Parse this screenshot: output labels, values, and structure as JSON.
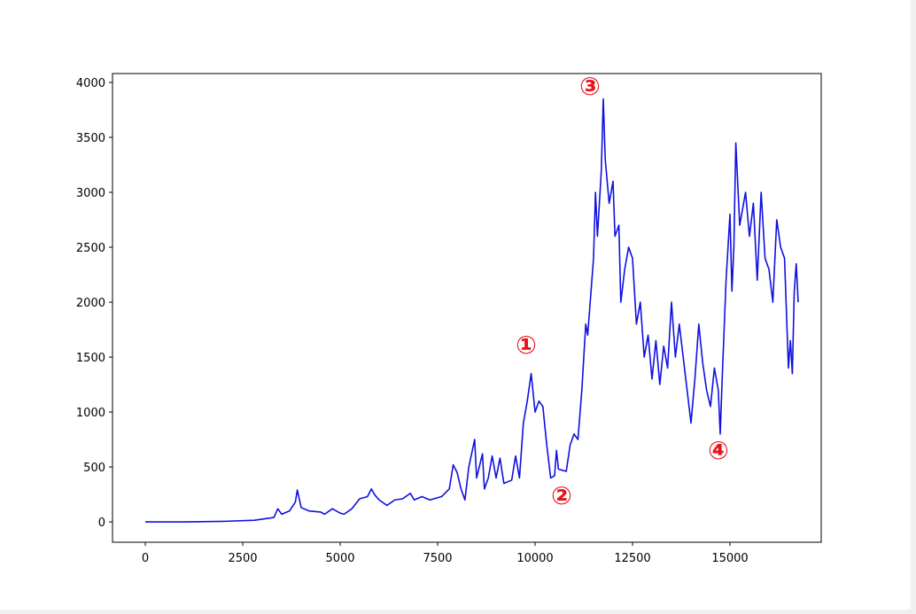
{
  "chart_data": {
    "type": "line",
    "color": "#1010e0",
    "x": [
      0,
      1000,
      2000,
      2800,
      3000,
      3300,
      3400,
      3500,
      3700,
      3850,
      3900,
      4000,
      4200,
      4500,
      4600,
      4800,
      5000,
      5100,
      5300,
      5500,
      5700,
      5800,
      5900,
      6000,
      6200,
      6400,
      6600,
      6800,
      6900,
      7100,
      7300,
      7600,
      7800,
      7900,
      8000,
      8100,
      8200,
      8300,
      8450,
      8500,
      8650,
      8700,
      8800,
      8900,
      9000,
      9100,
      9200,
      9400,
      9500,
      9600,
      9700,
      9800,
      9900,
      10000,
      10100,
      10200,
      10300,
      10400,
      10500,
      10550,
      10600,
      10800,
      10900,
      11000,
      11100,
      11200,
      11300,
      11350,
      11500,
      11550,
      11600,
      11700,
      11750,
      11800,
      11900,
      12000,
      12050,
      12150,
      12200,
      12300,
      12400,
      12500,
      12600,
      12700,
      12800,
      12900,
      13000,
      13100,
      13200,
      13300,
      13400,
      13500,
      13600,
      13700,
      13800,
      13900,
      14000,
      14100,
      14200,
      14300,
      14400,
      14500,
      14600,
      14700,
      14750,
      14800,
      14900,
      15000,
      15050,
      15100,
      15150,
      15250,
      15400,
      15500,
      15600,
      15700,
      15800,
      15900,
      16000,
      16100,
      16200,
      16300,
      16400,
      16500,
      16550,
      16600,
      16650,
      16700,
      16750
    ],
    "values": [
      0,
      0,
      5,
      15,
      25,
      40,
      120,
      70,
      100,
      180,
      290,
      130,
      100,
      90,
      70,
      120,
      80,
      70,
      120,
      210,
      230,
      300,
      240,
      200,
      150,
      200,
      210,
      260,
      200,
      230,
      200,
      230,
      300,
      520,
      450,
      300,
      200,
      500,
      750,
      400,
      620,
      300,
      400,
      600,
      400,
      580,
      350,
      380,
      600,
      400,
      900,
      1100,
      1350,
      1000,
      1100,
      1050,
      700,
      400,
      420,
      650,
      480,
      460,
      700,
      800,
      750,
      1200,
      1800,
      1700,
      2400,
      3000,
      2600,
      3200,
      3850,
      3300,
      2900,
      3100,
      2600,
      2700,
      2000,
      2300,
      2500,
      2400,
      1800,
      2000,
      1500,
      1700,
      1300,
      1650,
      1250,
      1600,
      1400,
      2000,
      1500,
      1800,
      1500,
      1200,
      900,
      1300,
      1800,
      1450,
      1200,
      1050,
      1400,
      1200,
      800,
      1300,
      2200,
      2800,
      2100,
      2500,
      3450,
      2700,
      3000,
      2600,
      2900,
      2200,
      3000,
      2400,
      2300,
      2000,
      2750,
      2500,
      2400,
      1400,
      1650,
      1350,
      2100,
      2350,
      2000
    ],
    "xlim": [
      -841,
      17341
    ],
    "ylim": [
      -185,
      4081
    ],
    "xticks": [
      0,
      2500,
      5000,
      7500,
      10000,
      12500,
      15000
    ],
    "yticks": [
      0,
      500,
      1000,
      1500,
      2000,
      2500,
      3000,
      3500,
      4000
    ],
    "annotations": [
      {
        "text": "①",
        "x": 9773,
        "y": 1597
      },
      {
        "text": "②",
        "x": 10682,
        "y": 226
      },
      {
        "text": "③",
        "x": 11409,
        "y": 3952
      },
      {
        "text": "④",
        "x": 14705,
        "y": 637
      }
    ]
  }
}
